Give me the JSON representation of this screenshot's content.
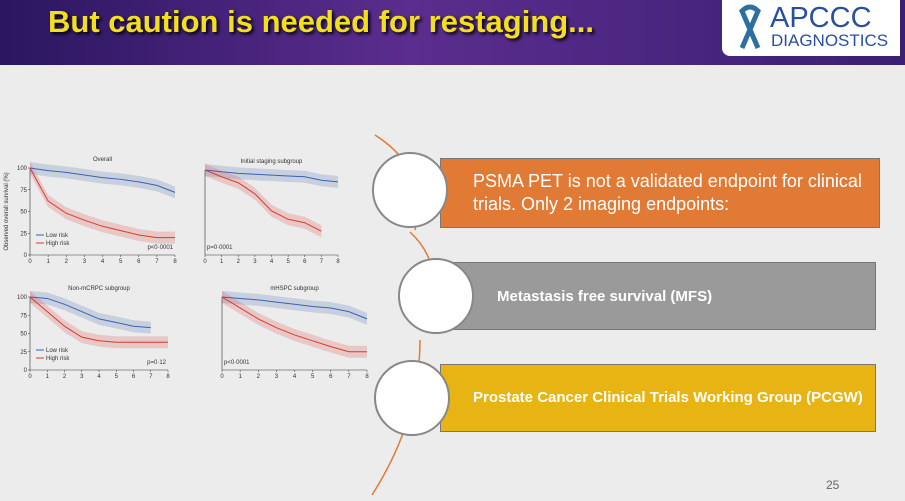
{
  "header": {
    "title": "But caution is needed for restaging...",
    "logo": {
      "name": "APCCC",
      "subtitle": "DIAGNOSTICS"
    }
  },
  "figure": {
    "panels": [
      {
        "title": "Overall",
        "ylabel": "Observed overall survival (%)",
        "xticks": [
          0,
          1,
          2,
          3,
          4,
          5,
          6,
          7,
          8
        ],
        "yticks": [
          0,
          25,
          50,
          75,
          100
        ],
        "legend": true,
        "p": "p<0·0001",
        "series": [
          {
            "name": "Low risk",
            "color": "#3a62b0",
            "values": [
              100,
              97,
              95,
              92,
              89,
              87,
              84,
              80,
              72
            ]
          },
          {
            "name": "High risk",
            "color": "#d83a30",
            "values": [
              100,
              62,
              48,
              40,
              33,
              28,
              23,
              20,
              20
            ]
          }
        ]
      },
      {
        "title": "Initial staging subgroup",
        "xticks": [
          0,
          1,
          2,
          3,
          4,
          5,
          6,
          7,
          8
        ],
        "p": "p=0·0001",
        "series": [
          {
            "color": "#3a62b0",
            "values": [
              100,
              98,
              96,
              95,
              94,
              93,
              92,
              88,
              86
            ]
          },
          {
            "color": "#d83a30",
            "values": [
              100,
              92,
              85,
              72,
              52,
              42,
              38,
              28,
              null
            ]
          }
        ]
      },
      {
        "title": "Non-mCRPC subgroup",
        "xticks": [
          0,
          1,
          2,
          3,
          4,
          5,
          6,
          7,
          8
        ],
        "yticks": [
          0,
          25,
          50,
          75,
          100
        ],
        "legend": true,
        "p": "p=0·12",
        "series": [
          {
            "name": "Low risk",
            "color": "#3a62b0",
            "values": [
              100,
              98,
              90,
              80,
              70,
              65,
              60,
              58,
              null
            ]
          },
          {
            "name": "High risk",
            "color": "#d83a30",
            "values": [
              100,
              80,
              60,
              45,
              40,
              38,
              38,
              38,
              38
            ]
          }
        ]
      },
      {
        "title": "mHSPC subgroup",
        "xticks": [
          0,
          1,
          2,
          3,
          4,
          5,
          6,
          7,
          8
        ],
        "p": "p<0·0001",
        "series": [
          {
            "color": "#3a62b0",
            "values": [
              100,
              98,
              96,
              93,
              90,
              87,
              85,
              80,
              70
            ]
          },
          {
            "color": "#d83a30",
            "values": [
              100,
              85,
              70,
              58,
              48,
              40,
              32,
              25,
              25
            ]
          }
        ]
      }
    ]
  },
  "boxes": [
    {
      "text": "PSMA PET is not a validated endpoint for clinical trials. Only 2 imaging endpoints:"
    },
    {
      "text": "Metastasis free survival (MFS)"
    },
    {
      "text": "Prostate Cancer Clinical Trials Working Group (PCGW)"
    }
  ],
  "page_number": "25"
}
